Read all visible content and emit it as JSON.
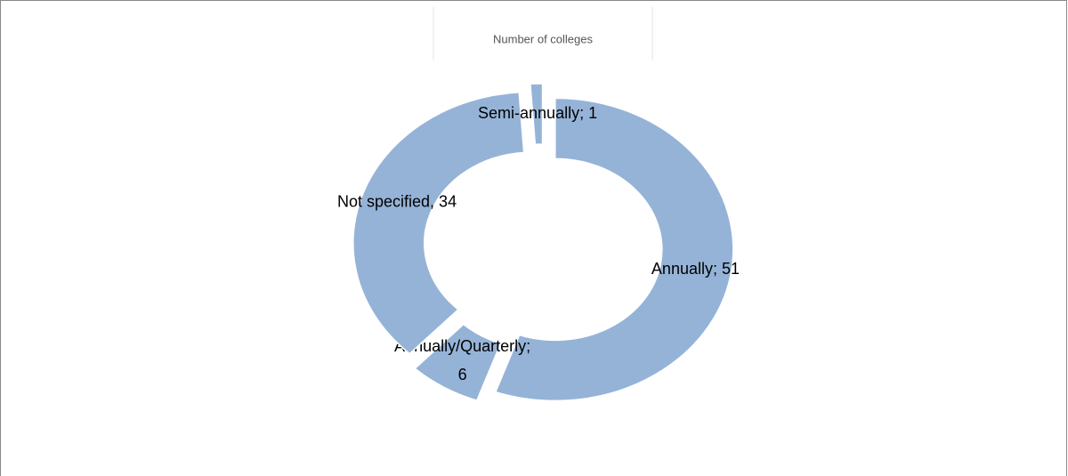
{
  "chart_data": {
    "type": "donut",
    "title": "Number of colleges",
    "values": [
      51,
      6,
      34,
      1
    ],
    "value_labels": [
      "Annually; 51",
      "Annually/Quarterly; 6",
      "Not specified, 34",
      "Semi-annually; 1"
    ],
    "color": "#95b3d7"
  }
}
